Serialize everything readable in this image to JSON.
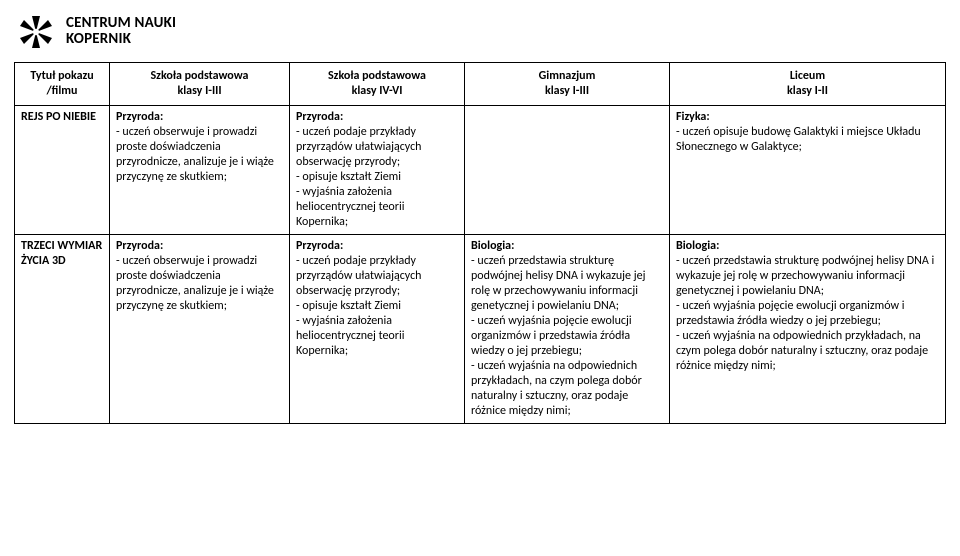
{
  "logo": {
    "line1": "CENTRUM NAUKI",
    "line2": "KOPERNIK",
    "mark_color": "#000000"
  },
  "table": {
    "header": {
      "c0a": "Tytuł pokazu",
      "c0b": "/filmu",
      "c1a": "Szkoła podstawowa",
      "c1b": "klasy I-III",
      "c2a": "Szkoła podstawowa",
      "c2b": "klasy IV-VI",
      "c3a": "Gimnazjum",
      "c3b": "klasy I-III",
      "c4a": "Liceum",
      "c4b": "klasy I-II"
    },
    "rows": [
      {
        "title": "REJS PO NIEBIE",
        "c1_head": "Przyroda:",
        "c1_body": "- uczeń obserwuje i prowadzi proste doświadczenia przyrodnicze, analizuje je i wiąże przyczynę ze skutkiem;",
        "c2_head": "Przyroda:",
        "c2_body": "- uczeń podaje przykłady przyrządów ułatwiających obserwację przyrody;\n- opisuje kształt Ziemi\n- wyjaśnia założenia heliocentrycznej teorii Kopernika;",
        "c3_head": "",
        "c3_body": "",
        "c4_head": "Fizyka:",
        "c4_body": "- uczeń opisuje budowę Galaktyki i miejsce Układu Słonecznego w Galaktyce;"
      },
      {
        "title": "TRZECI WYMIAR ŻYCIA 3D",
        "c1_head": "Przyroda:",
        "c1_body": "- uczeń obserwuje i prowadzi proste doświadczenia przyrodnicze, analizuje je i wiąże przyczynę ze skutkiem;",
        "c2_head": "Przyroda:",
        "c2_body": "- uczeń podaje przykłady przyrządów ułatwiających obserwację przyrody;\n- opisuje kształt Ziemi\n- wyjaśnia założenia heliocentrycznej teorii Kopernika;",
        "c3_head": "Biologia:",
        "c3_body": "- uczeń przedstawia strukturę podwójnej helisy DNA i wykazuje jej rolę w przechowywaniu informacji genetycznej i powielaniu DNA;\n- uczeń wyjaśnia pojęcie ewolucji organizmów i przedstawia źródła wiedzy o jej przebiegu;\n- uczeń wyjaśnia na odpowiednich przykładach, na czym polega dobór naturalny i sztuczny, oraz podaje różnice między nimi;",
        "c4_head": "Biologia:",
        "c4_body": "- uczeń przedstawia strukturę podwójnej helisy DNA i wykazuje jej rolę w przechowywaniu informacji genetycznej i powielaniu DNA;\n- uczeń wyjaśnia pojęcie ewolucji organizmów i przedstawia źródła wiedzy o jej przebiegu;\n- uczeń wyjaśnia na odpowiednich przykładach, na czym polega dobór naturalny i sztuczny, oraz podaje różnice między nimi;"
      }
    ]
  }
}
